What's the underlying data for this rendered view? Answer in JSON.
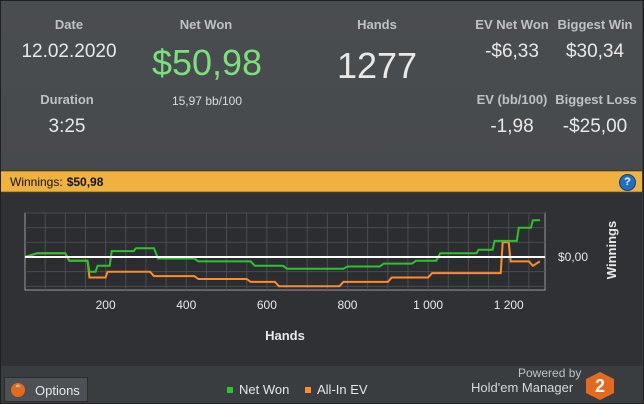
{
  "stats": {
    "date": {
      "label": "Date",
      "value": "12.02.2020"
    },
    "net_won": {
      "label": "Net Won",
      "value": "$50,98",
      "sub": "15,97 bb/100"
    },
    "hands": {
      "label": "Hands",
      "value": "1277"
    },
    "ev_net_won": {
      "label": "EV Net Won",
      "value": "-$6,33"
    },
    "biggest_win": {
      "label": "Biggest Win",
      "value": "$30,34"
    },
    "duration": {
      "label": "Duration",
      "value": "3:25"
    },
    "ev_bb100": {
      "label": "EV (bb/100)",
      "value": "-1,98"
    },
    "biggest_loss": {
      "label": "Biggest Loss",
      "value": "-$25,00"
    }
  },
  "winbar": {
    "label": "Winnings:",
    "value": "$50,98",
    "help": "?"
  },
  "chart_data": {
    "type": "line",
    "xlabel": "Hands",
    "ylabel": "Winnings",
    "xlim": [
      0,
      1290
    ],
    "ylim": [
      -45,
      60
    ],
    "x_ticks": [
      200,
      400,
      600,
      800,
      1000,
      1200
    ],
    "x_tick_labels": [
      "200",
      "400",
      "600",
      "800",
      "1 000",
      "1 200"
    ],
    "y_ticks": [
      0
    ],
    "y_tick_labels": [
      "$0,00"
    ],
    "grid": true,
    "series": [
      {
        "name": "Net Won",
        "color": "#2fc12f",
        "points": [
          [
            0,
            0
          ],
          [
            30,
            5
          ],
          [
            100,
            5
          ],
          [
            110,
            -5
          ],
          [
            155,
            -5
          ],
          [
            160,
            -20
          ],
          [
            175,
            -20
          ],
          [
            180,
            -12
          ],
          [
            210,
            -12
          ],
          [
            215,
            8
          ],
          [
            270,
            8
          ],
          [
            275,
            12
          ],
          [
            320,
            12
          ],
          [
            330,
            -2
          ],
          [
            420,
            -2
          ],
          [
            430,
            -6
          ],
          [
            560,
            -6
          ],
          [
            570,
            -12
          ],
          [
            640,
            -12
          ],
          [
            650,
            -16
          ],
          [
            790,
            -16
          ],
          [
            800,
            -13
          ],
          [
            880,
            -13
          ],
          [
            890,
            -9
          ],
          [
            960,
            -9
          ],
          [
            970,
            -5
          ],
          [
            1020,
            -5
          ],
          [
            1030,
            5
          ],
          [
            1120,
            5
          ],
          [
            1125,
            10
          ],
          [
            1160,
            10
          ],
          [
            1165,
            22
          ],
          [
            1220,
            22
          ],
          [
            1225,
            40
          ],
          [
            1255,
            40
          ],
          [
            1260,
            50
          ],
          [
            1275,
            50
          ],
          [
            1277,
            51
          ]
        ]
      },
      {
        "name": "All-In EV",
        "color": "#ff8c2a",
        "points": [
          [
            0,
            0
          ],
          [
            30,
            5
          ],
          [
            100,
            5
          ],
          [
            110,
            -5
          ],
          [
            155,
            -5
          ],
          [
            160,
            -28
          ],
          [
            200,
            -28
          ],
          [
            205,
            -20
          ],
          [
            310,
            -20
          ],
          [
            320,
            -26
          ],
          [
            420,
            -26
          ],
          [
            430,
            -30
          ],
          [
            550,
            -30
          ],
          [
            560,
            -34
          ],
          [
            620,
            -34
          ],
          [
            630,
            -40
          ],
          [
            780,
            -40
          ],
          [
            790,
            -34
          ],
          [
            900,
            -34
          ],
          [
            910,
            -28
          ],
          [
            1000,
            -28
          ],
          [
            1010,
            -22
          ],
          [
            1180,
            -22
          ],
          [
            1185,
            20
          ],
          [
            1200,
            20
          ],
          [
            1205,
            -6
          ],
          [
            1250,
            -6
          ],
          [
            1260,
            -12
          ],
          [
            1277,
            -6
          ]
        ]
      }
    ]
  },
  "legend": [
    {
      "label": "Net Won",
      "color": "#2fc12f"
    },
    {
      "label": "All-In EV",
      "color": "#ff8c2a"
    }
  ],
  "footer": {
    "options_label": "Options",
    "powered_by": "Powered by",
    "brand": "Hold'em Manager",
    "brand_badge": "2"
  }
}
